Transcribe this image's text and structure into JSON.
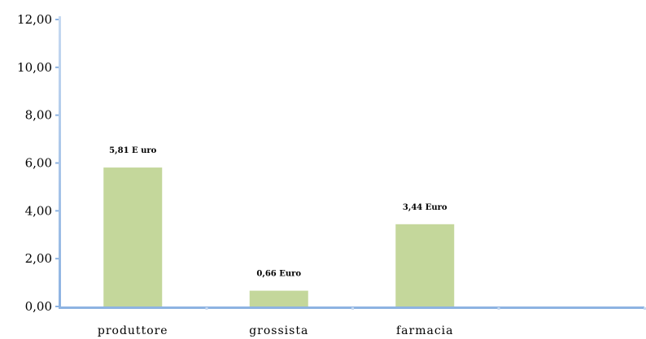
{
  "chart_data": {
    "type": "bar",
    "categories": [
      "produttore",
      "grossista",
      "farmacia",
      ""
    ],
    "values": [
      5.81,
      0.66,
      3.44,
      null
    ],
    "data_labels": [
      "5,81 E uro",
      "0,66 Euro",
      "3,44 Euro",
      ""
    ],
    "y_ticks": [
      "0,00",
      "2,00",
      "4,00",
      "6,00",
      "8,00",
      "10,00",
      "12,00"
    ],
    "ylim": [
      0,
      12
    ],
    "grid": false,
    "colors": {
      "bar": "#c4d79b",
      "axis": "#8db3e2",
      "axis_highlight": "#c6d9f1"
    }
  }
}
